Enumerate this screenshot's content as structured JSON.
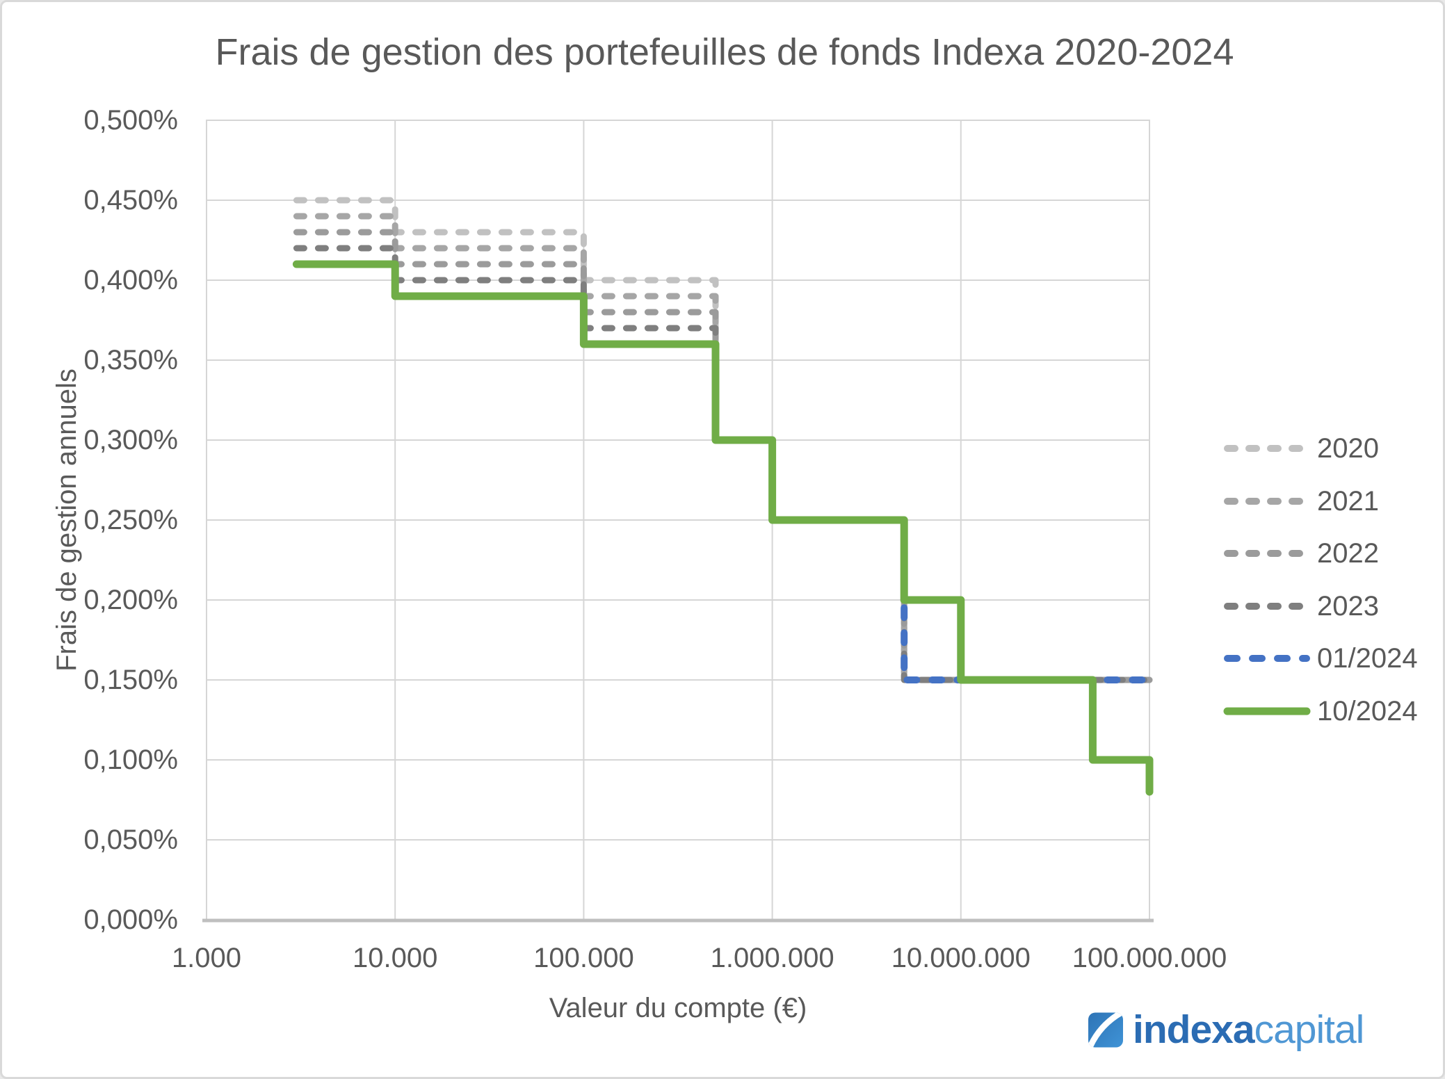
{
  "chart_data": {
    "type": "line",
    "subtype": "step",
    "title": "Frais de gestion des portefeuilles de fonds Indexa 2020-2024",
    "xlabel": "Valeur du compte (€)",
    "ylabel": "Frais de gestion annuels",
    "x_scale": "log",
    "xlim": [
      1000,
      100000000
    ],
    "ylim": [
      0,
      0.5
    ],
    "grid": true,
    "legend_position": "right-middle",
    "x_ticks": [
      {
        "v": 1000,
        "label": "1.000"
      },
      {
        "v": 10000,
        "label": "10.000"
      },
      {
        "v": 100000,
        "label": "100.000"
      },
      {
        "v": 1000000,
        "label": "1.000.000"
      },
      {
        "v": 10000000,
        "label": "10.000.000"
      },
      {
        "v": 100000000,
        "label": "100.000.000"
      }
    ],
    "y_ticks": [
      {
        "v": 0.0,
        "label": "0,000%"
      },
      {
        "v": 0.05,
        "label": "0,050%"
      },
      {
        "v": 0.1,
        "label": "0,100%"
      },
      {
        "v": 0.15,
        "label": "0,150%"
      },
      {
        "v": 0.2,
        "label": "0,200%"
      },
      {
        "v": 0.25,
        "label": "0,250%"
      },
      {
        "v": 0.3,
        "label": "0,300%"
      },
      {
        "v": 0.35,
        "label": "0,350%"
      },
      {
        "v": 0.4,
        "label": "0,400%"
      },
      {
        "v": 0.45,
        "label": "0,450%"
      },
      {
        "v": 0.5,
        "label": "0,500%"
      }
    ],
    "series": [
      {
        "name": "2020",
        "color": "#c1c1c1",
        "dash": true,
        "width": 9,
        "points": [
          [
            3000,
            0.45
          ],
          [
            10000,
            0.45
          ],
          [
            10000,
            0.43
          ],
          [
            100000,
            0.43
          ],
          [
            100000,
            0.4
          ],
          [
            500000,
            0.4
          ],
          [
            500000,
            0.3
          ],
          [
            1000000,
            0.3
          ],
          [
            1000000,
            0.25
          ],
          [
            5000000,
            0.25
          ],
          [
            5000000,
            0.15
          ],
          [
            100000000,
            0.15
          ]
        ]
      },
      {
        "name": "2021",
        "color": "#a6a6a6",
        "dash": true,
        "width": 9,
        "points": [
          [
            3000,
            0.44
          ],
          [
            10000,
            0.44
          ],
          [
            10000,
            0.42
          ],
          [
            100000,
            0.42
          ],
          [
            100000,
            0.39
          ],
          [
            500000,
            0.39
          ],
          [
            500000,
            0.3
          ],
          [
            1000000,
            0.3
          ],
          [
            1000000,
            0.25
          ],
          [
            5000000,
            0.25
          ],
          [
            5000000,
            0.15
          ],
          [
            100000000,
            0.15
          ]
        ]
      },
      {
        "name": "2022",
        "color": "#9b9b9b",
        "dash": true,
        "width": 9,
        "points": [
          [
            3000,
            0.43
          ],
          [
            10000,
            0.43
          ],
          [
            10000,
            0.41
          ],
          [
            100000,
            0.41
          ],
          [
            100000,
            0.38
          ],
          [
            500000,
            0.38
          ],
          [
            500000,
            0.3
          ],
          [
            1000000,
            0.3
          ],
          [
            1000000,
            0.25
          ],
          [
            5000000,
            0.25
          ],
          [
            5000000,
            0.15
          ],
          [
            100000000,
            0.15
          ]
        ]
      },
      {
        "name": "2023",
        "color": "#7f7f7f",
        "dash": true,
        "width": 9,
        "points": [
          [
            3000,
            0.42
          ],
          [
            10000,
            0.42
          ],
          [
            10000,
            0.4
          ],
          [
            100000,
            0.4
          ],
          [
            100000,
            0.37
          ],
          [
            500000,
            0.37
          ],
          [
            500000,
            0.3
          ],
          [
            1000000,
            0.3
          ],
          [
            1000000,
            0.25
          ],
          [
            5000000,
            0.25
          ],
          [
            5000000,
            0.15
          ],
          [
            100000000,
            0.15
          ]
        ]
      },
      {
        "name": "01/2024",
        "color": "#4472c4",
        "dash": true,
        "width": 10,
        "points": [
          [
            3000,
            0.41
          ],
          [
            10000,
            0.41
          ],
          [
            10000,
            0.39
          ],
          [
            100000,
            0.39
          ],
          [
            100000,
            0.36
          ],
          [
            500000,
            0.36
          ],
          [
            500000,
            0.3
          ],
          [
            1000000,
            0.3
          ],
          [
            1000000,
            0.25
          ],
          [
            5000000,
            0.25
          ],
          [
            5000000,
            0.15
          ],
          [
            100000000,
            0.15
          ]
        ]
      },
      {
        "name": "10/2024",
        "color": "#70ad47",
        "dash": false,
        "width": 11,
        "points": [
          [
            3000,
            0.41
          ],
          [
            10000,
            0.41
          ],
          [
            10000,
            0.39
          ],
          [
            100000,
            0.39
          ],
          [
            100000,
            0.36
          ],
          [
            500000,
            0.36
          ],
          [
            500000,
            0.3
          ],
          [
            1000000,
            0.3
          ],
          [
            1000000,
            0.25
          ],
          [
            5000000,
            0.25
          ],
          [
            5000000,
            0.2
          ],
          [
            10000000,
            0.2
          ],
          [
            10000000,
            0.15
          ],
          [
            50000000,
            0.15
          ],
          [
            50000000,
            0.1
          ],
          [
            100000000,
            0.1
          ],
          [
            100000000,
            0.08
          ]
        ]
      }
    ],
    "colors": {
      "grid": "#d6d6d6",
      "axis": "#bfbfbf",
      "text": "#595959"
    }
  },
  "brand": {
    "text_bold": "indexa",
    "text_light": "capital",
    "color_bold": "#2b6cb3",
    "color_light": "#4f97d4",
    "icon": "indexa-capital-swoosh-icon"
  }
}
